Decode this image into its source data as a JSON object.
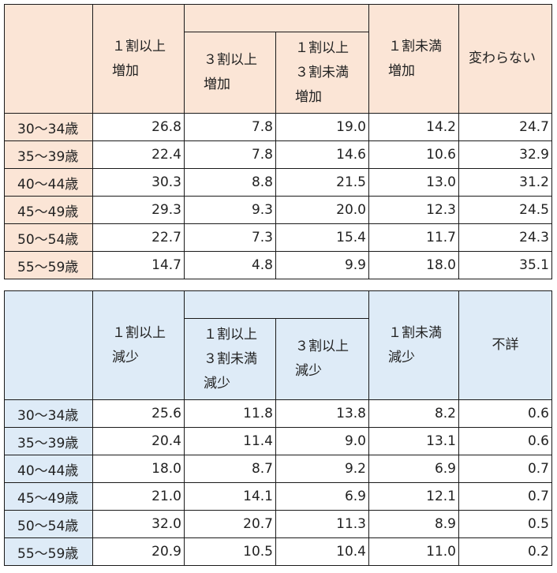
{
  "increase": {
    "headers": {
      "col1": [
        "１割以上",
        "増加"
      ],
      "col2": [
        "３割以上",
        "増加"
      ],
      "col3": [
        "１割以上",
        "３割未満",
        "増加"
      ],
      "col4": [
        "１割未満",
        "増加"
      ],
      "col5": [
        "変わらない"
      ]
    },
    "rows": [
      {
        "label": "30～34歳",
        "values": [
          "26.8",
          "7.8",
          "19.0",
          "14.2",
          "24.7"
        ]
      },
      {
        "label": "35～39歳",
        "values": [
          "22.4",
          "7.8",
          "14.6",
          "10.6",
          "32.9"
        ]
      },
      {
        "label": "40～44歳",
        "values": [
          "30.3",
          "8.8",
          "21.5",
          "13.0",
          "31.2"
        ]
      },
      {
        "label": "45～49歳",
        "values": [
          "29.3",
          "9.3",
          "20.0",
          "12.3",
          "24.5"
        ]
      },
      {
        "label": "50～54歳",
        "values": [
          "22.7",
          "7.3",
          "15.4",
          "11.7",
          "24.3"
        ]
      },
      {
        "label": "55～59歳",
        "values": [
          "14.7",
          "4.8",
          "9.9",
          "18.0",
          "35.1"
        ]
      }
    ]
  },
  "decrease": {
    "headers": {
      "col1": [
        "１割以上",
        "減少"
      ],
      "col2": [
        "１割以上",
        "３割未満",
        "減少"
      ],
      "col3": [
        "３割以上",
        "減少"
      ],
      "col4": [
        "１割未満",
        "減少"
      ],
      "col5": [
        "不詳"
      ]
    },
    "rows": [
      {
        "label": "30～34歳",
        "values": [
          "25.6",
          "11.8",
          "13.8",
          "8.2",
          "0.6"
        ]
      },
      {
        "label": "35～39歳",
        "values": [
          "20.4",
          "11.4",
          "9.0",
          "13.1",
          "0.6"
        ]
      },
      {
        "label": "40～44歳",
        "values": [
          "18.0",
          "8.7",
          "9.2",
          "6.9",
          "0.7"
        ]
      },
      {
        "label": "45～49歳",
        "values": [
          "21.0",
          "14.1",
          "6.9",
          "12.1",
          "0.7"
        ]
      },
      {
        "label": "50～54歳",
        "values": [
          "32.0",
          "20.7",
          "11.3",
          "8.9",
          "0.5"
        ]
      },
      {
        "label": "55～59歳",
        "values": [
          "20.9",
          "10.5",
          "10.4",
          "11.0",
          "0.2"
        ]
      }
    ]
  },
  "colors": {
    "increase_header_bg": "#fbe5d6",
    "decrease_header_bg": "#deebf7",
    "border": "#1a1a1a"
  }
}
